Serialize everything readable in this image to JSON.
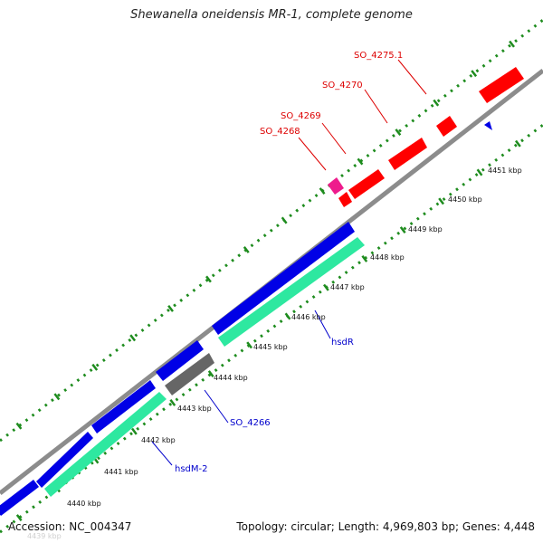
{
  "title": "Shewanella oneidensis MR-1, complete genome",
  "footer": {
    "accession": "Accession: NC_004347",
    "topology": "Topology: circular; Length: 4,969,803 bp; Genes: 4,448"
  },
  "scale_labels": [
    "4440 kbp",
    "4441 kbp",
    "4442 kbp",
    "4443 kbp",
    "4444 kbp",
    "4445 kbp",
    "4446 kbp",
    "4447 kbp",
    "4448 kbp",
    "4449 kbp",
    "4450 kbp",
    "4451 kbp"
  ],
  "faint_label": "4439 kbp",
  "gene_labels": {
    "so_4275_1": "SO_4275.1",
    "so_4270": "SO_4270",
    "so_4269": "SO_4269",
    "so_4268": "SO_4268",
    "hsdr": "hsdR",
    "so_4266": "SO_4266",
    "hsdm_2": "hsdM-2"
  },
  "colors": {
    "forward_cds": "#0000e6",
    "reverse_cds": "#2ee8a0",
    "rna": "#ff0000",
    "misc": "#ee1b8c",
    "pseudo": "#666666",
    "backbone": "#8c8c8c",
    "dots": "#1e8c1e",
    "label_red": "#dd0000",
    "label_blue": "#0000cc"
  }
}
